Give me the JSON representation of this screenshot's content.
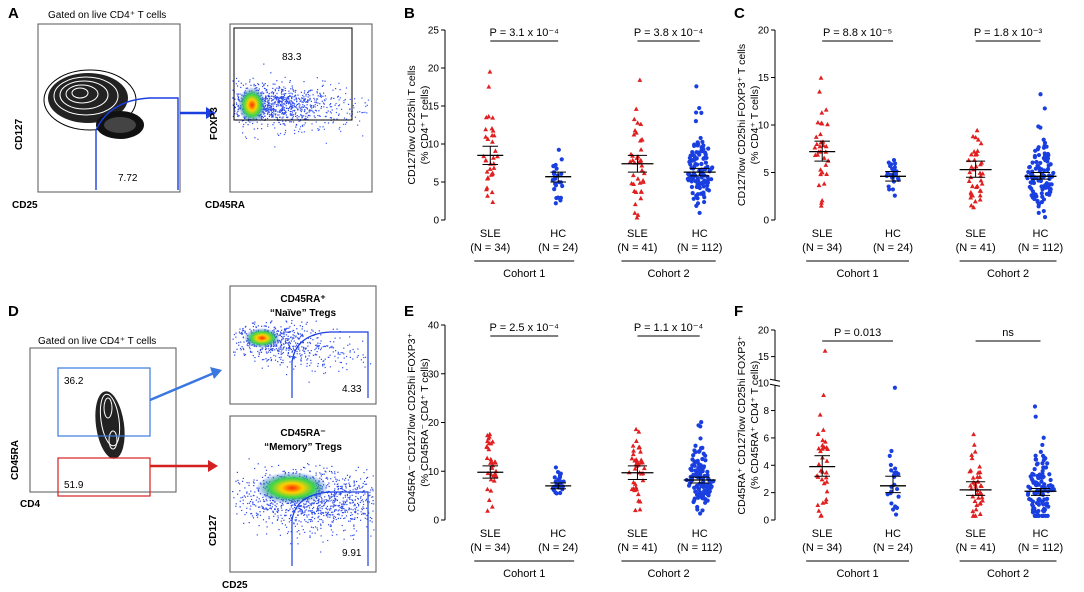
{
  "figure": {
    "panels": [
      "A",
      "B",
      "C",
      "D",
      "E",
      "F"
    ],
    "flow_panels": {
      "A": {
        "gate_title": "Gated on live CD4⁺ T cells",
        "left": {
          "x_label": "CD25",
          "y_label": "CD127",
          "gate_value": "7.72"
        },
        "right": {
          "x_label": "CD45RA",
          "y_label": "FOXP3",
          "gate_value": "83.3"
        }
      },
      "D": {
        "gate_title": "Gated on live CD4⁺ T cells",
        "left": {
          "x_label": "CD4",
          "y_label": "CD45RA",
          "upper_gate": "36.2",
          "lower_gate": "51.9"
        },
        "naive": {
          "title_line1": "CD45RA⁺",
          "title_line2": "“Naïve” Tregs",
          "gate_value": "4.33"
        },
        "memory": {
          "title_line1": "CD45RA⁻",
          "title_line2": "“Memory” Tregs",
          "gate_value": "9.91",
          "x_label": "CD25",
          "y_label": "CD127"
        }
      }
    }
  },
  "chart_data": [
    {
      "panel": "B",
      "type": "scatter",
      "ylabel_line1": "CD127low CD25hi T cells",
      "ylabel_line2": "(% CD4⁺ T cells)",
      "ylim": [
        0,
        25
      ],
      "yticks": [
        0,
        5,
        10,
        15,
        20,
        25
      ],
      "groups": [
        {
          "label": "SLE",
          "n": "(N = 34)",
          "n_points": 34,
          "mean": 8.5,
          "ci": [
            7.3,
            9.7
          ],
          "color": "#e02020",
          "cohort": "Cohort 1"
        },
        {
          "label": "HC",
          "n": "(N = 24)",
          "n_points": 24,
          "mean": 5.7,
          "ci": [
            5.0,
            6.3
          ],
          "color": "#1a3fe0",
          "cohort": "Cohort 1"
        },
        {
          "label": "SLE",
          "n": "(N = 41)",
          "n_points": 41,
          "mean": 7.4,
          "ci": [
            6.3,
            8.5
          ],
          "color": "#e02020",
          "cohort": "Cohort 2"
        },
        {
          "label": "HC",
          "n": "(N = 112)",
          "n_points": 112,
          "mean": 6.3,
          "ci": [
            5.8,
            6.8
          ],
          "color": "#1a3fe0",
          "cohort": "Cohort 2"
        }
      ],
      "pvalues": [
        "P = 3.1 x 10⁻⁴",
        "P = 3.8 x 10⁻⁴"
      ],
      "cohorts": [
        "Cohort 1",
        "Cohort 2"
      ]
    },
    {
      "panel": "C",
      "type": "scatter",
      "ylabel_line1": "CD127low CD25hi FOXP3⁺ T cells",
      "ylabel_line2": "(% CD4⁺ T cells)",
      "ylim": [
        0,
        20
      ],
      "yticks": [
        0,
        5,
        10,
        15,
        20
      ],
      "groups": [
        {
          "label": "SLE",
          "n": "(N = 34)",
          "n_points": 34,
          "mean": 7.2,
          "ci": [
            6.2,
            8.3
          ],
          "color": "#e02020",
          "cohort": "Cohort 1"
        },
        {
          "label": "HC",
          "n": "(N = 24)",
          "n_points": 24,
          "mean": 4.6,
          "ci": [
            4.1,
            5.1
          ],
          "color": "#1a3fe0",
          "cohort": "Cohort 1"
        },
        {
          "label": "SLE",
          "n": "(N = 41)",
          "n_points": 41,
          "mean": 5.3,
          "ci": [
            4.5,
            6.2
          ],
          "color": "#e02020",
          "cohort": "Cohort 2"
        },
        {
          "label": "HC",
          "n": "(N = 112)",
          "n_points": 112,
          "mean": 4.6,
          "ci": [
            4.3,
            5.0
          ],
          "color": "#1a3fe0",
          "cohort": "Cohort 2"
        }
      ],
      "pvalues": [
        "P = 8.8 x 10⁻⁵",
        "P = 1.8 x 10⁻³"
      ],
      "cohorts": [
        "Cohort 1",
        "Cohort 2"
      ]
    },
    {
      "panel": "E",
      "type": "scatter",
      "ylabel_line1": "CD45RA⁻ CD127low CD25hi FOXP3⁺",
      "ylabel_line2": "(% CD45RA⁻ CD4⁺ T cells)",
      "ylim": [
        0,
        40
      ],
      "yticks": [
        0,
        10,
        20,
        30,
        40
      ],
      "groups": [
        {
          "label": "SLE",
          "n": "(N = 34)",
          "n_points": 34,
          "mean": 9.8,
          "ci": [
            8.6,
            11.1
          ],
          "color": "#e02020",
          "cohort": "Cohort 1"
        },
        {
          "label": "HC",
          "n": "(N = 24)",
          "n_points": 24,
          "mean": 7.0,
          "ci": [
            6.4,
            7.6
          ],
          "color": "#1a3fe0",
          "cohort": "Cohort 1"
        },
        {
          "label": "SLE",
          "n": "(N = 41)",
          "n_points": 41,
          "mean": 9.7,
          "ci": [
            8.3,
            11.1
          ],
          "color": "#e02020",
          "cohort": "Cohort 2"
        },
        {
          "label": "HC",
          "n": "(N = 112)",
          "n_points": 112,
          "mean": 8.2,
          "ci": [
            7.6,
            8.8
          ],
          "color": "#1a3fe0",
          "cohort": "Cohort 2"
        }
      ],
      "pvalues": [
        "P = 2.5 x 10⁻⁴",
        "P = 1.1 x 10⁻⁴"
      ],
      "cohorts": [
        "Cohort 1",
        "Cohort 2"
      ]
    },
    {
      "panel": "F",
      "type": "scatter",
      "ylabel_line1": "CD45RA⁺ CD127low CD25hi FOXP3⁺",
      "ylabel_line2": "(% CD45RA⁺ CD4⁺ T cells)",
      "ylim": [
        0,
        20
      ],
      "yticks": [
        0,
        2,
        4,
        6,
        8,
        10,
        15,
        20
      ],
      "axis_break": [
        10,
        10
      ],
      "groups": [
        {
          "label": "SLE",
          "n": "(N = 34)",
          "n_points": 34,
          "mean": 3.9,
          "ci": [
            3.2,
            4.7
          ],
          "color": "#e02020",
          "cohort": "Cohort 1"
        },
        {
          "label": "HC",
          "n": "(N = 24)",
          "n_points": 24,
          "mean": 2.5,
          "ci": [
            2.0,
            3.2
          ],
          "color": "#1a3fe0",
          "cohort": "Cohort 1"
        },
        {
          "label": "SLE",
          "n": "(N = 41)",
          "n_points": 41,
          "mean": 2.2,
          "ci": [
            1.8,
            2.8
          ],
          "color": "#e02020",
          "cohort": "Cohort 2"
        },
        {
          "label": "HC",
          "n": "(N = 112)",
          "n_points": 112,
          "mean": 2.1,
          "ci": [
            1.8,
            2.3
          ],
          "color": "#1a3fe0",
          "cohort": "Cohort 2"
        }
      ],
      "pvalues": [
        "P = 0.013",
        "ns"
      ],
      "cohorts": [
        "Cohort 1",
        "Cohort 2"
      ]
    }
  ]
}
